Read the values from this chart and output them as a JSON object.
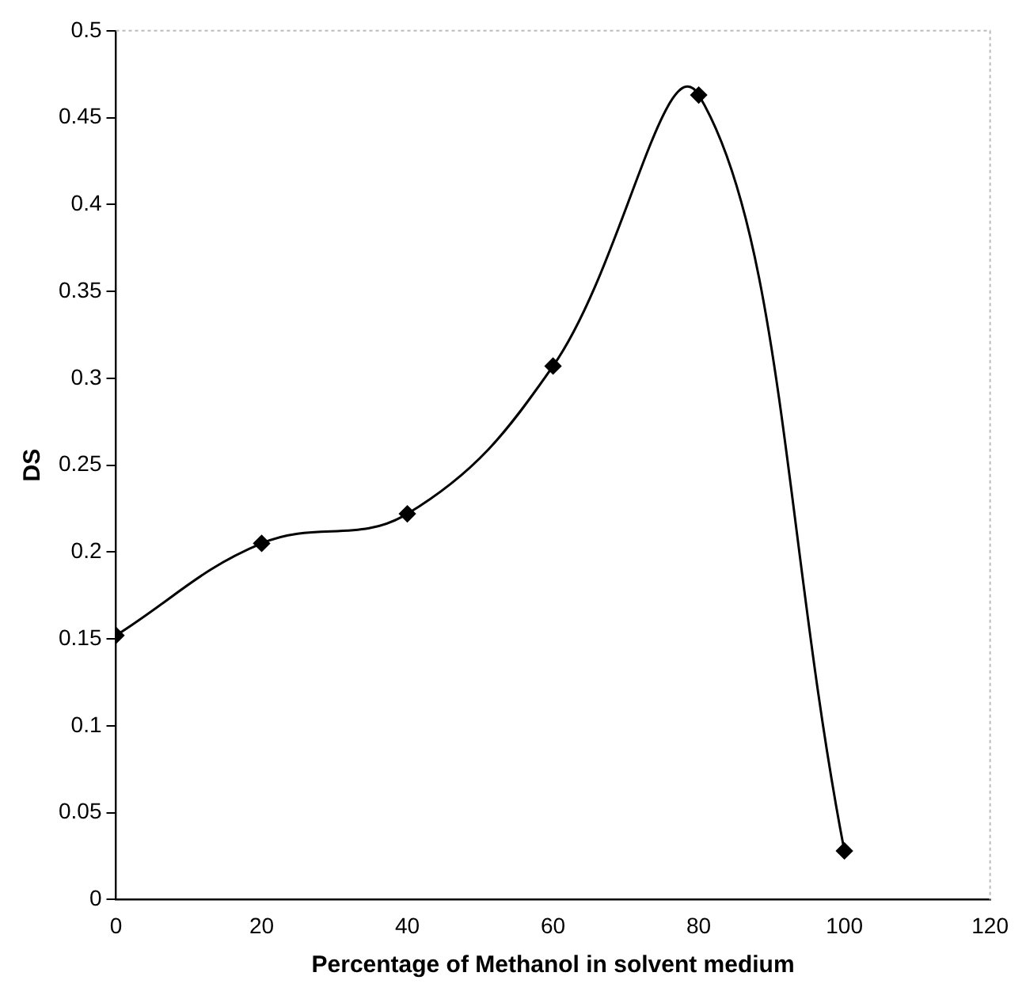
{
  "chart_data": {
    "type": "line",
    "xlabel": "Percentage of Methanol in solvent medium",
    "ylabel": "DS",
    "x": [
      0,
      20,
      40,
      60,
      80,
      100
    ],
    "series": [
      {
        "color": "#000000",
        "values": [
          0.152,
          0.205,
          0.222,
          0.307,
          0.463,
          0.028
        ]
      }
    ],
    "xlim": [
      0,
      120
    ],
    "xticks": [
      0,
      20,
      40,
      60,
      80,
      100,
      120
    ],
    "ylim": [
      0,
      0.5
    ],
    "yticks": [
      0,
      0.05,
      0.1,
      0.15,
      0.2,
      0.25,
      0.3,
      0.35,
      0.4,
      0.45,
      0.5
    ],
    "grid": false,
    "legend": false,
    "marker": "diamond",
    "line_style": "solid"
  }
}
